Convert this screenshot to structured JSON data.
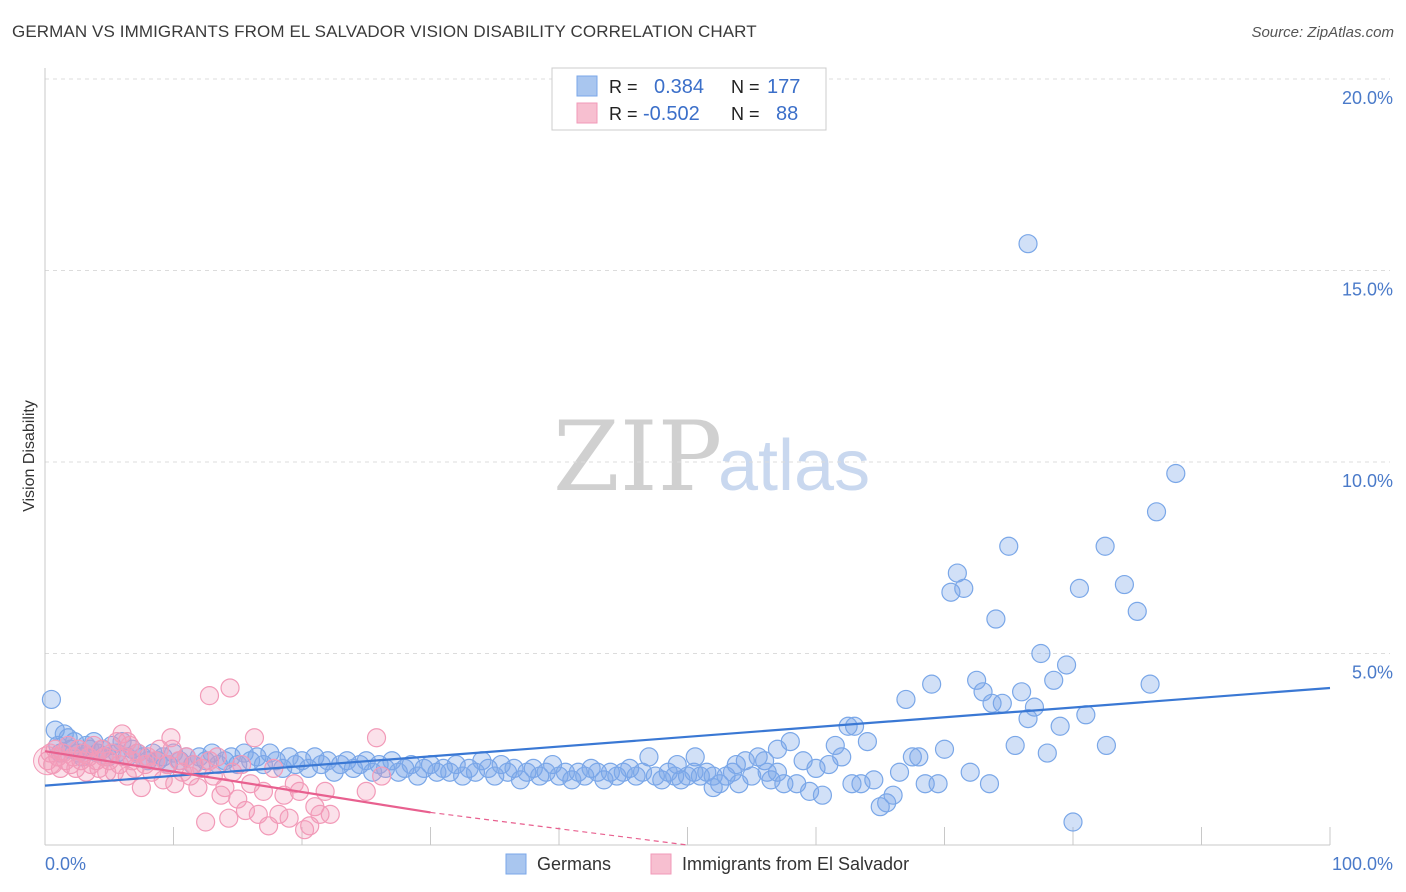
{
  "chart_data": {
    "type": "scatter",
    "title": "GERMAN VS IMMIGRANTS FROM EL SALVADOR VISION DISABILITY CORRELATION CHART",
    "source": "Source: ZipAtlas.com",
    "xlabel": "",
    "ylabel": "Vision Disability",
    "xlim": [
      0,
      100
    ],
    "ylim": [
      0,
      20
    ],
    "x_tick_labels": [
      "0.0%",
      "100.0%"
    ],
    "y_ticks": [
      5,
      10,
      15,
      20
    ],
    "y_tick_labels": [
      "5.0%",
      "10.0%",
      "15.0%",
      "20.0%"
    ],
    "grid": true,
    "watermark": {
      "zip": "ZIP",
      "atlas": "atlas"
    },
    "legend_box": {
      "r_label": "R =",
      "n_label": "N =",
      "rows": [
        {
          "r": "0.384",
          "n": "177"
        },
        {
          "r": "-0.502",
          "n": "88"
        }
      ]
    },
    "series": [
      {
        "name": "Germans",
        "color": "#7aa7e8",
        "line_color": "#3a78d4",
        "r": 0.384,
        "n": 177,
        "trend": {
          "x0": 0,
          "y0": 1.55,
          "x1": 100,
          "y1": 4.1
        },
        "points": [
          [
            0.5,
            3.8
          ],
          [
            0.8,
            3.0
          ],
          [
            1.0,
            2.6
          ],
          [
            1.2,
            2.4
          ],
          [
            1.5,
            2.9
          ],
          [
            1.8,
            2.8
          ],
          [
            2.0,
            2.5
          ],
          [
            2.3,
            2.7
          ],
          [
            2.6,
            2.4
          ],
          [
            2.9,
            2.3
          ],
          [
            3.2,
            2.6
          ],
          [
            3.5,
            2.5
          ],
          [
            3.8,
            2.7
          ],
          [
            4.1,
            2.4
          ],
          [
            4.5,
            2.5
          ],
          [
            4.9,
            2.3
          ],
          [
            5.2,
            2.6
          ],
          [
            5.6,
            2.4
          ],
          [
            6.0,
            2.7
          ],
          [
            6.4,
            2.3
          ],
          [
            6.8,
            2.5
          ],
          [
            7.2,
            2.4
          ],
          [
            7.6,
            2.3
          ],
          [
            8.0,
            2.2
          ],
          [
            8.4,
            2.4
          ],
          [
            8.8,
            2.2
          ],
          [
            9.2,
            2.3
          ],
          [
            9.6,
            2.1
          ],
          [
            10.0,
            2.4
          ],
          [
            10.5,
            2.2
          ],
          [
            11.0,
            2.3
          ],
          [
            11.5,
            2.1
          ],
          [
            12.0,
            2.3
          ],
          [
            12.5,
            2.2
          ],
          [
            13.0,
            2.4
          ],
          [
            13.5,
            2.1
          ],
          [
            14.0,
            2.2
          ],
          [
            14.5,
            2.3
          ],
          [
            15.0,
            2.1
          ],
          [
            15.5,
            2.4
          ],
          [
            16.0,
            2.2
          ],
          [
            16.5,
            2.3
          ],
          [
            17.0,
            2.1
          ],
          [
            17.5,
            2.4
          ],
          [
            18.0,
            2.2
          ],
          [
            18.5,
            2.0
          ],
          [
            19.0,
            2.3
          ],
          [
            19.5,
            2.1
          ],
          [
            20.0,
            2.2
          ],
          [
            20.5,
            2.0
          ],
          [
            21.0,
            2.3
          ],
          [
            21.5,
            2.1
          ],
          [
            22.0,
            2.2
          ],
          [
            22.5,
            1.9
          ],
          [
            23.0,
            2.1
          ],
          [
            23.5,
            2.2
          ],
          [
            24.0,
            2.0
          ],
          [
            24.5,
            2.1
          ],
          [
            25.0,
            2.2
          ],
          [
            25.5,
            1.9
          ],
          [
            26.0,
            2.1
          ],
          [
            26.5,
            2.0
          ],
          [
            27.0,
            2.2
          ],
          [
            27.5,
            1.9
          ],
          [
            28.0,
            2.0
          ],
          [
            28.5,
            2.1
          ],
          [
            29.0,
            1.8
          ],
          [
            29.5,
            2.0
          ],
          [
            30.0,
            2.1
          ],
          [
            30.5,
            1.9
          ],
          [
            31.0,
            2.0
          ],
          [
            31.5,
            1.9
          ],
          [
            32.0,
            2.1
          ],
          [
            32.5,
            1.8
          ],
          [
            33.0,
            2.0
          ],
          [
            33.5,
            1.9
          ],
          [
            34.0,
            2.2
          ],
          [
            34.5,
            2.0
          ],
          [
            35.0,
            1.8
          ],
          [
            35.5,
            2.1
          ],
          [
            36.0,
            1.9
          ],
          [
            36.5,
            2.0
          ],
          [
            37.0,
            1.7
          ],
          [
            37.5,
            1.9
          ],
          [
            38.0,
            2.0
          ],
          [
            38.5,
            1.8
          ],
          [
            39.0,
            1.9
          ],
          [
            39.5,
            2.1
          ],
          [
            40.0,
            1.8
          ],
          [
            40.5,
            1.9
          ],
          [
            41.0,
            1.7
          ],
          [
            41.5,
            1.9
          ],
          [
            42.0,
            1.8
          ],
          [
            42.5,
            2.0
          ],
          [
            43.0,
            1.9
          ],
          [
            43.5,
            1.7
          ],
          [
            44.0,
            1.9
          ],
          [
            44.5,
            1.8
          ],
          [
            45.0,
            1.9
          ],
          [
            45.5,
            2.0
          ],
          [
            46.0,
            1.8
          ],
          [
            46.5,
            1.9
          ],
          [
            47.0,
            2.3
          ],
          [
            47.5,
            1.8
          ],
          [
            48.0,
            1.7
          ],
          [
            48.5,
            1.9
          ],
          [
            49.0,
            1.8
          ],
          [
            49.5,
            1.7
          ],
          [
            50.0,
            1.8
          ],
          [
            50.5,
            1.9
          ],
          [
            51.0,
            1.8
          ],
          [
            51.5,
            1.9
          ],
          [
            52.0,
            1.8
          ],
          [
            52.5,
            1.6
          ],
          [
            53.0,
            1.8
          ],
          [
            53.5,
            1.9
          ],
          [
            54.0,
            1.6
          ],
          [
            54.5,
            2.2
          ],
          [
            55.0,
            1.8
          ],
          [
            55.5,
            2.3
          ],
          [
            56.0,
            2.2
          ],
          [
            56.5,
            1.7
          ],
          [
            57.0,
            1.9
          ],
          [
            57.5,
            1.6
          ],
          [
            58.0,
            2.7
          ],
          [
            58.5,
            1.6
          ],
          [
            59.0,
            2.2
          ],
          [
            59.5,
            1.4
          ],
          [
            60.0,
            2.0
          ],
          [
            60.5,
            1.3
          ],
          [
            61.0,
            2.1
          ],
          [
            61.5,
            2.6
          ],
          [
            62.0,
            2.3
          ],
          [
            62.5,
            3.1
          ],
          [
            63.0,
            3.1
          ],
          [
            63.5,
            1.6
          ],
          [
            64.0,
            2.7
          ],
          [
            64.5,
            1.7
          ],
          [
            65.0,
            1.0
          ],
          [
            65.5,
            1.1
          ],
          [
            66.0,
            1.3
          ],
          [
            66.5,
            1.9
          ],
          [
            67.0,
            3.8
          ],
          [
            67.5,
            2.3
          ],
          [
            68.0,
            2.3
          ],
          [
            68.5,
            1.6
          ],
          [
            69.0,
            4.2
          ],
          [
            69.5,
            1.6
          ],
          [
            70.0,
            2.5
          ],
          [
            70.5,
            6.6
          ],
          [
            71.0,
            7.1
          ],
          [
            71.5,
            6.7
          ],
          [
            72.0,
            1.9
          ],
          [
            72.5,
            4.3
          ],
          [
            73.0,
            4.0
          ],
          [
            73.5,
            1.6
          ],
          [
            74.0,
            5.9
          ],
          [
            74.5,
            3.7
          ],
          [
            75.0,
            7.8
          ],
          [
            75.5,
            2.6
          ],
          [
            76.0,
            4.0
          ],
          [
            76.5,
            3.3
          ],
          [
            77.0,
            3.6
          ],
          [
            77.5,
            5.0
          ],
          [
            78.0,
            2.4
          ],
          [
            78.5,
            4.3
          ],
          [
            79.0,
            3.1
          ],
          [
            79.5,
            4.7
          ],
          [
            80.0,
            0.6
          ],
          [
            80.5,
            6.7
          ],
          [
            81.0,
            3.4
          ],
          [
            82.5,
            7.8
          ],
          [
            82.6,
            2.6
          ],
          [
            84.0,
            6.8
          ],
          [
            85.0,
            6.1
          ],
          [
            86.0,
            4.2
          ],
          [
            86.5,
            8.7
          ],
          [
            88.0,
            9.7
          ],
          [
            76.5,
            15.7
          ],
          [
            73.7,
            3.7
          ],
          [
            62.8,
            1.6
          ],
          [
            57.0,
            2.5
          ],
          [
            56.2,
            1.9
          ],
          [
            53.8,
            2.1
          ],
          [
            52.0,
            1.5
          ],
          [
            50.6,
            2.3
          ],
          [
            49.2,
            2.1
          ]
        ]
      },
      {
        "name": "Immigrants from El Salvador",
        "color": "#f29ab8",
        "line_color": "#e8608f",
        "r": -0.502,
        "n": 88,
        "trend": {
          "x0": 0,
          "y0": 2.45,
          "x1": 30,
          "y1": 0.85
        },
        "trend_dashed_to": {
          "x": 50,
          "y": 0.0
        },
        "points": [
          [
            0.2,
            2.2
          ],
          [
            0.4,
            2.4
          ],
          [
            0.6,
            2.1
          ],
          [
            0.8,
            2.5
          ],
          [
            1.0,
            2.3
          ],
          [
            1.2,
            2.0
          ],
          [
            1.4,
            2.4
          ],
          [
            1.6,
            2.2
          ],
          [
            1.8,
            2.6
          ],
          [
            2.0,
            2.1
          ],
          [
            2.2,
            2.3
          ],
          [
            2.4,
            2.0
          ],
          [
            2.6,
            2.5
          ],
          [
            2.8,
            2.2
          ],
          [
            3.0,
            2.4
          ],
          [
            3.2,
            1.9
          ],
          [
            3.4,
            2.3
          ],
          [
            3.6,
            2.1
          ],
          [
            3.8,
            2.6
          ],
          [
            4.0,
            2.2
          ],
          [
            4.2,
            2.0
          ],
          [
            4.4,
            2.5
          ],
          [
            4.6,
            2.3
          ],
          [
            4.8,
            1.9
          ],
          [
            5.0,
            2.2
          ],
          [
            5.2,
            2.4
          ],
          [
            5.4,
            1.9
          ],
          [
            5.6,
            2.7
          ],
          [
            5.8,
            2.1
          ],
          [
            6.0,
            2.9
          ],
          [
            6.2,
            2.3
          ],
          [
            6.4,
            1.8
          ],
          [
            6.6,
            2.6
          ],
          [
            6.8,
            2.2
          ],
          [
            7.0,
            2.0
          ],
          [
            7.2,
            2.4
          ],
          [
            7.5,
            1.5
          ],
          [
            7.8,
            2.1
          ],
          [
            8.0,
            2.3
          ],
          [
            8.3,
            1.9
          ],
          [
            8.6,
            2.2
          ],
          [
            8.9,
            2.5
          ],
          [
            9.2,
            1.7
          ],
          [
            9.5,
            2.1
          ],
          [
            9.8,
            2.8
          ],
          [
            10.1,
            1.6
          ],
          [
            10.4,
            2.2
          ],
          [
            10.7,
            1.9
          ],
          [
            11.0,
            2.3
          ],
          [
            11.3,
            1.8
          ],
          [
            11.6,
            2.1
          ],
          [
            11.9,
            1.5
          ],
          [
            12.2,
            2.0
          ],
          [
            12.5,
            0.6
          ],
          [
            12.8,
            2.2
          ],
          [
            13.1,
            1.8
          ],
          [
            13.4,
            2.3
          ],
          [
            13.7,
            1.3
          ],
          [
            14.0,
            1.5
          ],
          [
            14.3,
            0.7
          ],
          [
            14.6,
            1.9
          ],
          [
            15.0,
            1.2
          ],
          [
            15.3,
            2.1
          ],
          [
            15.6,
            0.9
          ],
          [
            16.0,
            1.6
          ],
          [
            16.3,
            2.8
          ],
          [
            16.6,
            0.8
          ],
          [
            17.0,
            1.4
          ],
          [
            17.4,
            0.5
          ],
          [
            17.8,
            2.0
          ],
          [
            18.2,
            0.8
          ],
          [
            18.6,
            1.3
          ],
          [
            19.0,
            0.7
          ],
          [
            19.4,
            1.6
          ],
          [
            19.8,
            1.4
          ],
          [
            20.2,
            0.4
          ],
          [
            20.6,
            0.5
          ],
          [
            21.0,
            1.0
          ],
          [
            21.4,
            0.8
          ],
          [
            21.8,
            1.4
          ],
          [
            22.2,
            0.8
          ],
          [
            25.0,
            1.4
          ],
          [
            25.8,
            2.8
          ],
          [
            26.2,
            1.8
          ],
          [
            12.8,
            3.9
          ],
          [
            14.4,
            4.1
          ],
          [
            9.9,
            2.5
          ],
          [
            6.4,
            2.7
          ]
        ]
      }
    ]
  }
}
